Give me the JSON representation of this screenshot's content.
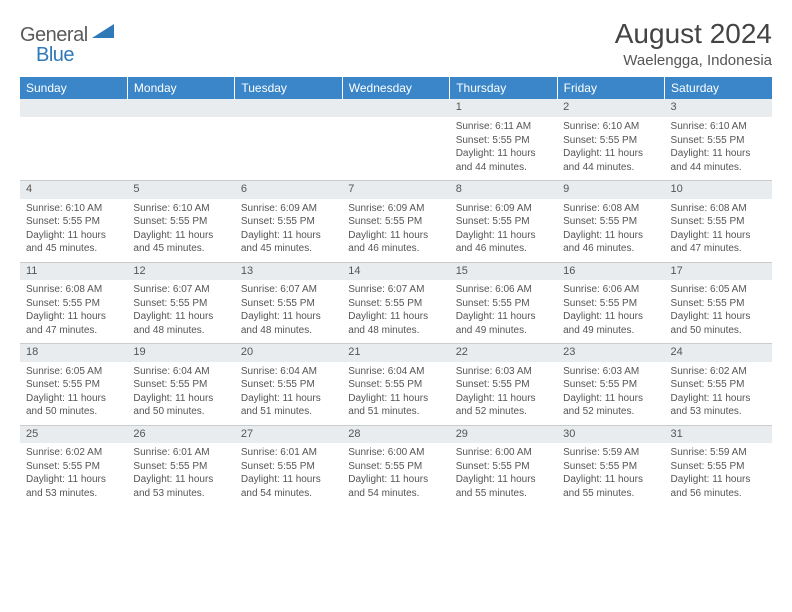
{
  "logo": {
    "part1": "General",
    "part2": "Blue"
  },
  "title": "August 2024",
  "location": "Waelengga, Indonesia",
  "colors": {
    "header_bg": "#3a86c8",
    "header_text": "#ffffff",
    "daynum_bg": "#e9ecef",
    "text": "#555555",
    "border": "#cccccc",
    "logo_gray": "#5a5a5a",
    "logo_blue": "#2f79b9"
  },
  "weekdays": [
    "Sunday",
    "Monday",
    "Tuesday",
    "Wednesday",
    "Thursday",
    "Friday",
    "Saturday"
  ],
  "weeks": [
    [
      null,
      null,
      null,
      null,
      {
        "n": "1",
        "sr": "6:11 AM",
        "ss": "5:55 PM",
        "dl": "11 hours and 44 minutes."
      },
      {
        "n": "2",
        "sr": "6:10 AM",
        "ss": "5:55 PM",
        "dl": "11 hours and 44 minutes."
      },
      {
        "n": "3",
        "sr": "6:10 AM",
        "ss": "5:55 PM",
        "dl": "11 hours and 44 minutes."
      }
    ],
    [
      {
        "n": "4",
        "sr": "6:10 AM",
        "ss": "5:55 PM",
        "dl": "11 hours and 45 minutes."
      },
      {
        "n": "5",
        "sr": "6:10 AM",
        "ss": "5:55 PM",
        "dl": "11 hours and 45 minutes."
      },
      {
        "n": "6",
        "sr": "6:09 AM",
        "ss": "5:55 PM",
        "dl": "11 hours and 45 minutes."
      },
      {
        "n": "7",
        "sr": "6:09 AM",
        "ss": "5:55 PM",
        "dl": "11 hours and 46 minutes."
      },
      {
        "n": "8",
        "sr": "6:09 AM",
        "ss": "5:55 PM",
        "dl": "11 hours and 46 minutes."
      },
      {
        "n": "9",
        "sr": "6:08 AM",
        "ss": "5:55 PM",
        "dl": "11 hours and 46 minutes."
      },
      {
        "n": "10",
        "sr": "6:08 AM",
        "ss": "5:55 PM",
        "dl": "11 hours and 47 minutes."
      }
    ],
    [
      {
        "n": "11",
        "sr": "6:08 AM",
        "ss": "5:55 PM",
        "dl": "11 hours and 47 minutes."
      },
      {
        "n": "12",
        "sr": "6:07 AM",
        "ss": "5:55 PM",
        "dl": "11 hours and 48 minutes."
      },
      {
        "n": "13",
        "sr": "6:07 AM",
        "ss": "5:55 PM",
        "dl": "11 hours and 48 minutes."
      },
      {
        "n": "14",
        "sr": "6:07 AM",
        "ss": "5:55 PM",
        "dl": "11 hours and 48 minutes."
      },
      {
        "n": "15",
        "sr": "6:06 AM",
        "ss": "5:55 PM",
        "dl": "11 hours and 49 minutes."
      },
      {
        "n": "16",
        "sr": "6:06 AM",
        "ss": "5:55 PM",
        "dl": "11 hours and 49 minutes."
      },
      {
        "n": "17",
        "sr": "6:05 AM",
        "ss": "5:55 PM",
        "dl": "11 hours and 50 minutes."
      }
    ],
    [
      {
        "n": "18",
        "sr": "6:05 AM",
        "ss": "5:55 PM",
        "dl": "11 hours and 50 minutes."
      },
      {
        "n": "19",
        "sr": "6:04 AM",
        "ss": "5:55 PM",
        "dl": "11 hours and 50 minutes."
      },
      {
        "n": "20",
        "sr": "6:04 AM",
        "ss": "5:55 PM",
        "dl": "11 hours and 51 minutes."
      },
      {
        "n": "21",
        "sr": "6:04 AM",
        "ss": "5:55 PM",
        "dl": "11 hours and 51 minutes."
      },
      {
        "n": "22",
        "sr": "6:03 AM",
        "ss": "5:55 PM",
        "dl": "11 hours and 52 minutes."
      },
      {
        "n": "23",
        "sr": "6:03 AM",
        "ss": "5:55 PM",
        "dl": "11 hours and 52 minutes."
      },
      {
        "n": "24",
        "sr": "6:02 AM",
        "ss": "5:55 PM",
        "dl": "11 hours and 53 minutes."
      }
    ],
    [
      {
        "n": "25",
        "sr": "6:02 AM",
        "ss": "5:55 PM",
        "dl": "11 hours and 53 minutes."
      },
      {
        "n": "26",
        "sr": "6:01 AM",
        "ss": "5:55 PM",
        "dl": "11 hours and 53 minutes."
      },
      {
        "n": "27",
        "sr": "6:01 AM",
        "ss": "5:55 PM",
        "dl": "11 hours and 54 minutes."
      },
      {
        "n": "28",
        "sr": "6:00 AM",
        "ss": "5:55 PM",
        "dl": "11 hours and 54 minutes."
      },
      {
        "n": "29",
        "sr": "6:00 AM",
        "ss": "5:55 PM",
        "dl": "11 hours and 55 minutes."
      },
      {
        "n": "30",
        "sr": "5:59 AM",
        "ss": "5:55 PM",
        "dl": "11 hours and 55 minutes."
      },
      {
        "n": "31",
        "sr": "5:59 AM",
        "ss": "5:55 PM",
        "dl": "11 hours and 56 minutes."
      }
    ]
  ],
  "labels": {
    "sunrise": "Sunrise:",
    "sunset": "Sunset:",
    "daylight": "Daylight:"
  }
}
